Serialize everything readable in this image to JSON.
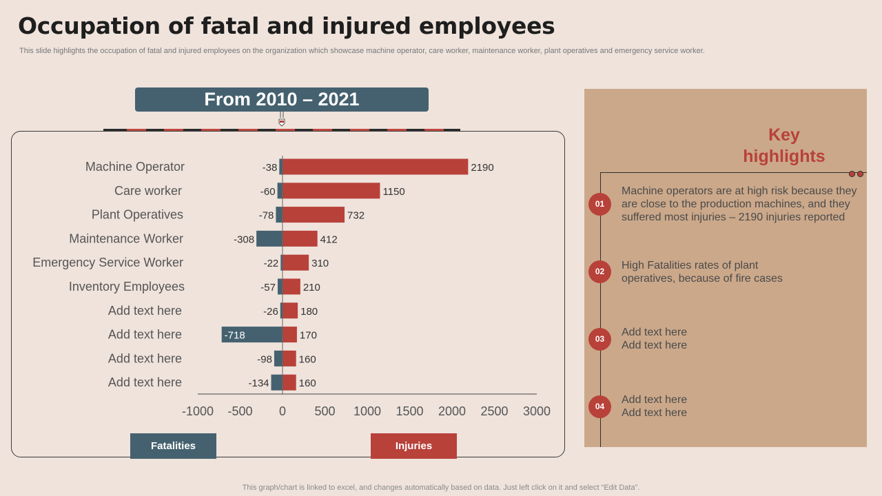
{
  "title": "Occupation of fatal and injured employees",
  "subtitle": "This slide highlights the occupation of fatal and injured employees on the organization which showcase machine operator, care worker, maintenance worker, plant operatives and emergency service worker.",
  "period": "From 2010 – 2021",
  "legend": {
    "fatalities": "Fatalities",
    "injuries": "Injuries"
  },
  "colors": {
    "fatalities": "#45616F",
    "injuries": "#B8413A",
    "accent": "#B8413A",
    "panel": "#CBA88A"
  },
  "chart_data": {
    "type": "bar",
    "orientation": "horizontal",
    "stacked": true,
    "categories": [
      "Machine Operator",
      "Care worker",
      "Plant Operatives",
      "Maintenance Worker",
      "Emergency Service Worker",
      "Inventory Employees",
      "Add text here",
      "Add text here",
      "Add text here",
      "Add text here"
    ],
    "series": [
      {
        "name": "Fatalities",
        "values": [
          -38,
          -60,
          -78,
          -308,
          -22,
          -57,
          -26,
          -718,
          -98,
          -134
        ]
      },
      {
        "name": "Injuries",
        "values": [
          2190,
          1150,
          732,
          412,
          310,
          210,
          180,
          170,
          160,
          160
        ]
      }
    ],
    "xlim": [
      -1000,
      3000
    ],
    "xticks": [
      -1000,
      -500,
      0,
      500,
      1000,
      1500,
      2000,
      2500,
      3000
    ],
    "legend_position": "bottom",
    "grid": false
  },
  "highlights": {
    "title": "Key highlights",
    "items": [
      {
        "num": "01",
        "text": "Machine operators are at high risk because they are close to the production machines, and they suffered most injuries – 2190 injuries reported"
      },
      {
        "num": "02",
        "text": "High Fatalities rates of plant operatives, because of fire cases"
      },
      {
        "num": "03",
        "text": "Add text here Add text here"
      },
      {
        "num": "04",
        "text": "Add text here Add text here"
      }
    ]
  },
  "footer": "This graph/chart is linked to excel, and changes automatically based on data. Just left click on it and select “Edit Data”."
}
